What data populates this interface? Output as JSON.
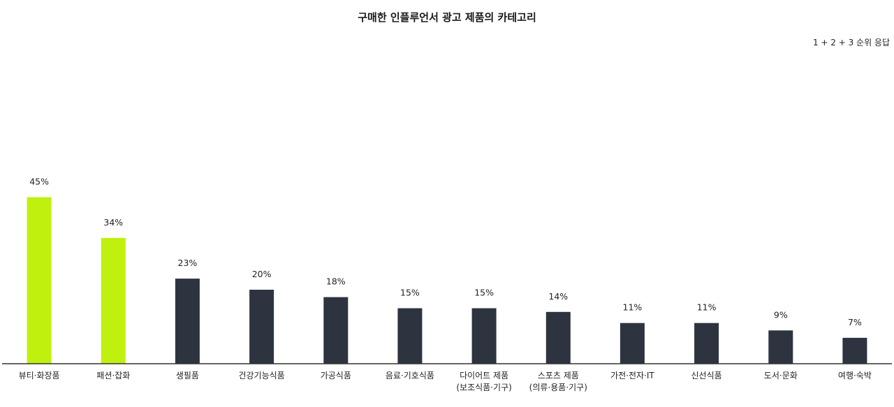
{
  "chart_data": {
    "type": "bar",
    "title": "구매한 인플루언서 광고 제품의 카테고리",
    "note": "1 + 2 + 3 순위 응답",
    "unit": "%",
    "ylim": [
      0,
      50
    ],
    "grid": false,
    "categories": [
      [
        "뷰티·화장품"
      ],
      [
        "패션·잡화"
      ],
      [
        "생필품"
      ],
      [
        "건강기능식품"
      ],
      [
        "가공식품"
      ],
      [
        "음료·기호식품"
      ],
      [
        "다이어트 제품",
        "(보조식품·기구)"
      ],
      [
        "스포츠 제품",
        "(의류·용품·기구)"
      ],
      [
        "가전·전자·IT"
      ],
      [
        "신선식품"
      ],
      [
        "도서·문화"
      ],
      [
        "여행·숙박"
      ]
    ],
    "values": [
      45,
      34,
      23,
      20,
      18,
      15,
      15,
      14,
      11,
      11,
      9,
      7
    ],
    "value_labels": [
      "45%",
      "34%",
      "23%",
      "20%",
      "18%",
      "15%",
      "15%",
      "14%",
      "11%",
      "11%",
      "9%",
      "7%"
    ],
    "colors": {
      "highlight": "#bff00e",
      "default": "#2d3440",
      "axis": "#333333"
    },
    "highlight_count": 2
  }
}
